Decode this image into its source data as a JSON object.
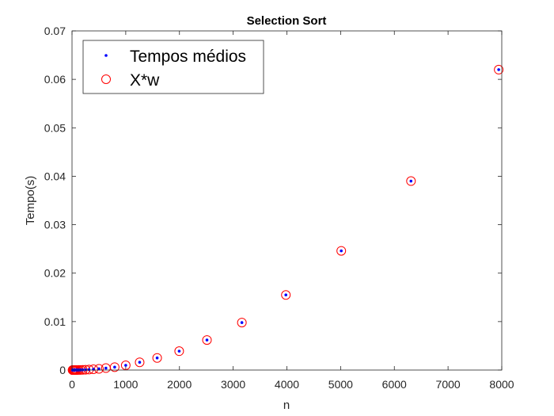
{
  "chart_data": {
    "type": "scatter",
    "title": "Selection Sort",
    "xlabel": "n",
    "ylabel": "Tempo(s)",
    "xlim": [
      0,
      8000
    ],
    "ylim": [
      0,
      0.07
    ],
    "xticks": [
      0,
      1000,
      2000,
      3000,
      4000,
      5000,
      6000,
      7000,
      8000
    ],
    "xtick_labels": [
      "0",
      "1000",
      "2000",
      "3000",
      "4000",
      "5000",
      "6000",
      "7000",
      "8000"
    ],
    "yticks": [
      0,
      0.01,
      0.02,
      0.03,
      0.04,
      0.05,
      0.06,
      0.07
    ],
    "ytick_labels": [
      "0",
      "0.01",
      "0.02",
      "0.03",
      "0.04",
      "0.05",
      "0.06",
      "0.07"
    ],
    "grid": false,
    "legend_position": "top-left",
    "series": [
      {
        "name": "Tempos médios",
        "marker": "dot",
        "color": "#0000ff",
        "points": [
          [
            10,
            1e-07
          ],
          [
            13,
            2e-07
          ],
          [
            16,
            3e-07
          ],
          [
            20,
            4e-07
          ],
          [
            25,
            6e-07
          ],
          [
            32,
            1e-06
          ],
          [
            40,
            1.6e-06
          ],
          [
            50,
            2.5e-06
          ],
          [
            63,
            4e-06
          ],
          [
            79,
            6e-06
          ],
          [
            100,
            1e-05
          ],
          [
            126,
            1.6e-05
          ],
          [
            158,
            2.5e-05
          ],
          [
            200,
            4e-05
          ],
          [
            251,
            6e-05
          ],
          [
            316,
            0.0001
          ],
          [
            398,
            0.00016
          ],
          [
            501,
            0.00025
          ],
          [
            631,
            0.0004
          ],
          [
            794,
            0.0006
          ],
          [
            1000,
            0.00098
          ],
          [
            1259,
            0.0016
          ],
          [
            1585,
            0.0025
          ],
          [
            1995,
            0.0039
          ],
          [
            2512,
            0.0062
          ],
          [
            3162,
            0.0098
          ],
          [
            3981,
            0.0155
          ],
          [
            5012,
            0.0246
          ],
          [
            6310,
            0.039
          ],
          [
            7943,
            0.062
          ]
        ]
      },
      {
        "name": "X*w",
        "marker": "circle",
        "color": "#ff0000",
        "points": [
          [
            10,
            1e-07
          ],
          [
            13,
            2e-07
          ],
          [
            16,
            3e-07
          ],
          [
            20,
            4e-07
          ],
          [
            25,
            6e-07
          ],
          [
            32,
            1e-06
          ],
          [
            40,
            1.6e-06
          ],
          [
            50,
            2.5e-06
          ],
          [
            63,
            4e-06
          ],
          [
            79,
            6e-06
          ],
          [
            100,
            1e-05
          ],
          [
            126,
            1.6e-05
          ],
          [
            158,
            2.5e-05
          ],
          [
            200,
            4e-05
          ],
          [
            251,
            6e-05
          ],
          [
            316,
            0.0001
          ],
          [
            398,
            0.00016
          ],
          [
            501,
            0.00025
          ],
          [
            631,
            0.0004
          ],
          [
            794,
            0.0006
          ],
          [
            1000,
            0.00098
          ],
          [
            1259,
            0.0016
          ],
          [
            1585,
            0.0025
          ],
          [
            1995,
            0.0039
          ],
          [
            2512,
            0.0062
          ],
          [
            3162,
            0.0098
          ],
          [
            3981,
            0.0155
          ],
          [
            5012,
            0.0246
          ],
          [
            6310,
            0.039
          ],
          [
            7943,
            0.062
          ]
        ]
      }
    ]
  }
}
